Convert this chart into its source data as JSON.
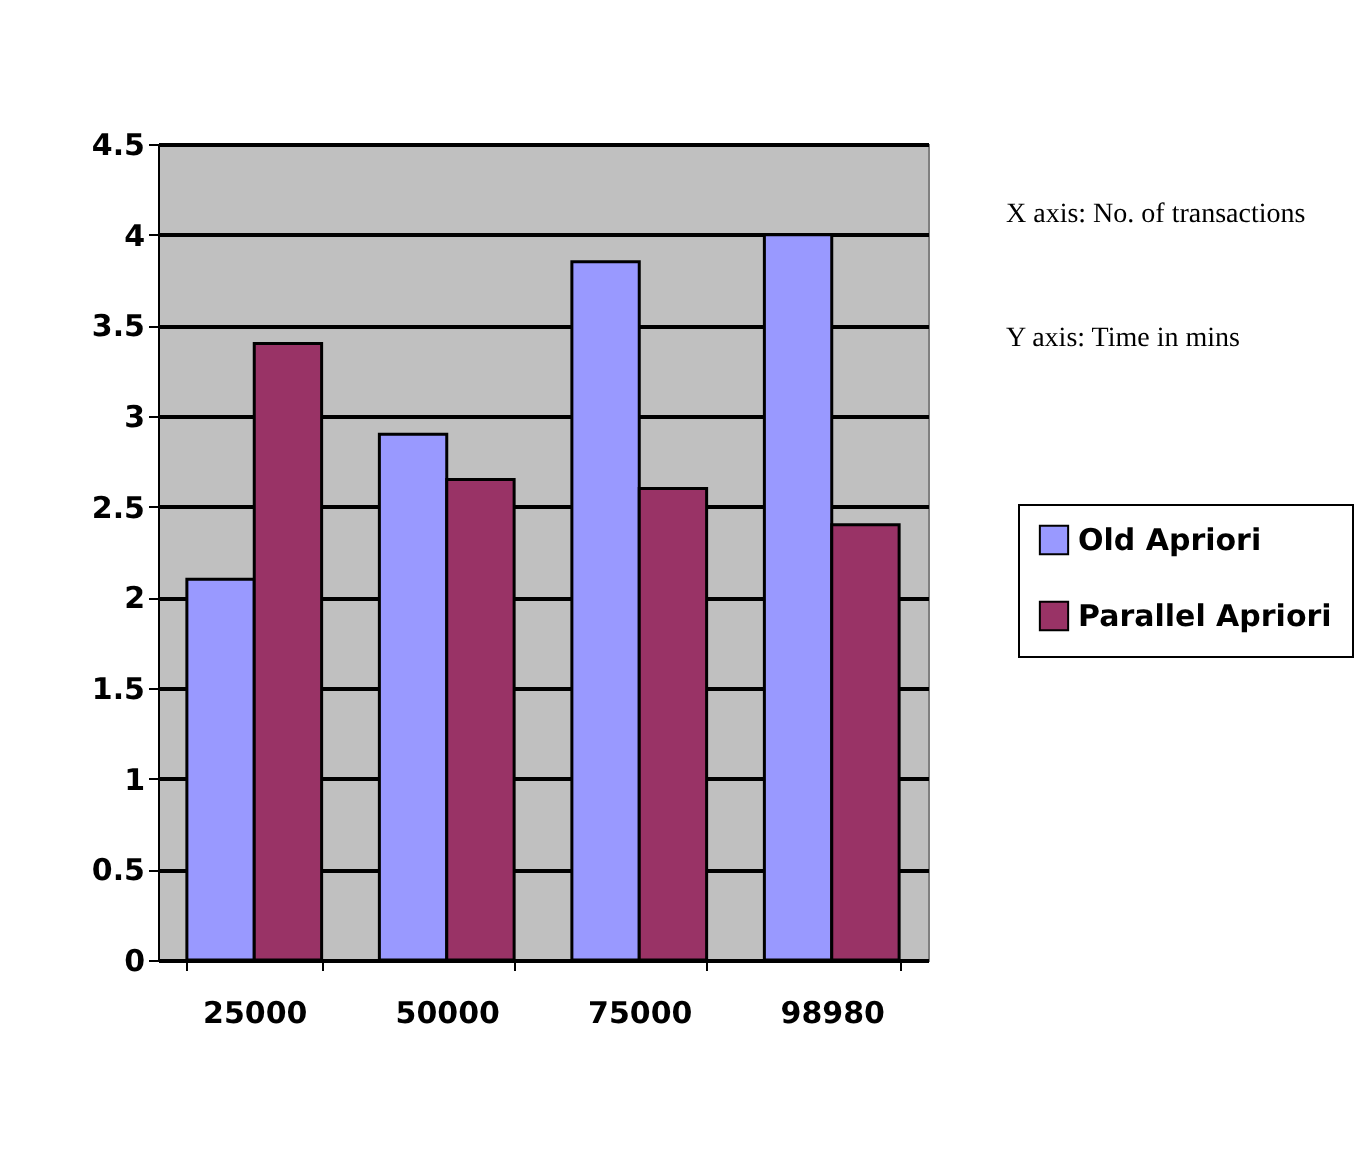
{
  "chart_data": {
    "type": "bar",
    "categories": [
      "25000",
      "50000",
      "75000",
      "98980"
    ],
    "series": [
      {
        "name": "Old Apriori",
        "color": "#9999ff",
        "values": [
          2.1,
          2.9,
          3.85,
          4.0
        ]
      },
      {
        "name": "Parallel Apriori",
        "color": "#993366",
        "values": [
          3.4,
          2.65,
          2.6,
          2.4
        ]
      }
    ],
    "ylim": [
      0,
      4.5
    ],
    "yticks": [
      0,
      0.5,
      1,
      1.5,
      2,
      2.5,
      3,
      3.5,
      4,
      4.5
    ],
    "grid": "y",
    "legend": "right",
    "annotations": [
      "X axis: No. of transactions",
      "Y axis: Time in mins"
    ]
  }
}
